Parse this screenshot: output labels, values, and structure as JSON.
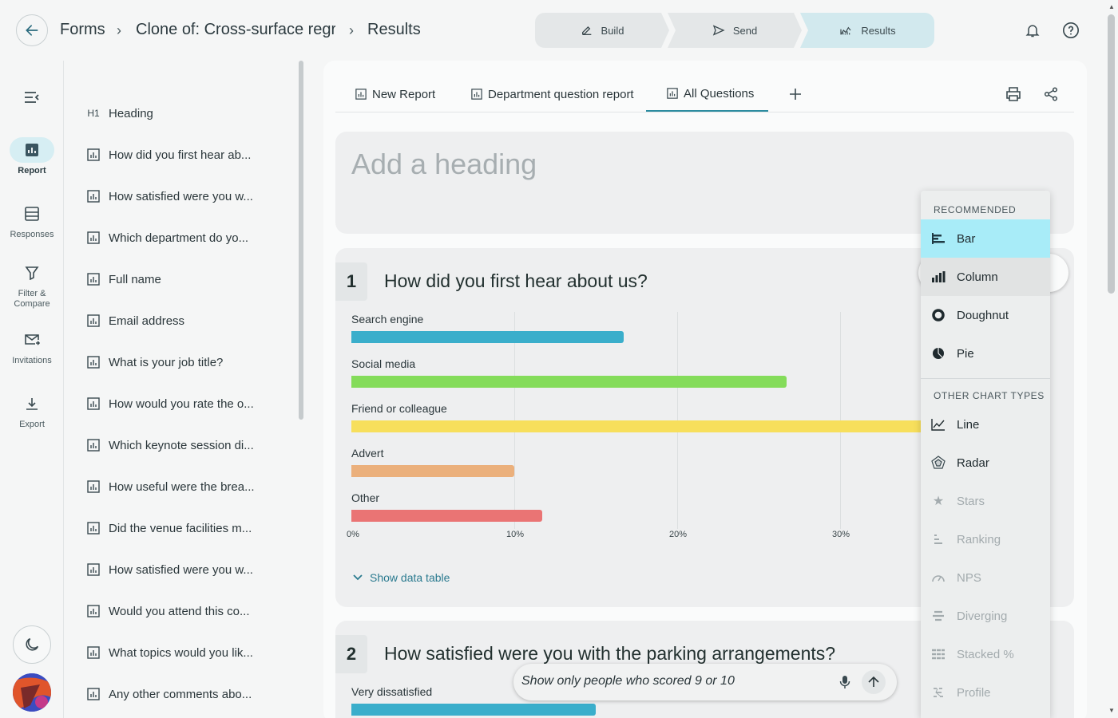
{
  "breadcrumb": {
    "root": "Forms",
    "form": "Clone of: Cross-surface regr...",
    "page": "Results"
  },
  "steps": [
    {
      "label": "Build"
    },
    {
      "label": "Send"
    },
    {
      "label": "Results"
    }
  ],
  "rail": {
    "report": "Report",
    "responses": "Responses",
    "filter": "Filter & Compare",
    "invitations": "Invitations",
    "export": "Export"
  },
  "questions": [
    {
      "prefix": "H1",
      "label": "Heading"
    },
    {
      "label": "How did you first hear ab..."
    },
    {
      "label": "How satisfied were you w..."
    },
    {
      "label": "Which department do yo..."
    },
    {
      "label": "Full name"
    },
    {
      "label": "Email address"
    },
    {
      "label": "What is your job title?"
    },
    {
      "label": "How would you rate the o..."
    },
    {
      "label": "Which keynote session di..."
    },
    {
      "label": "How useful were the brea..."
    },
    {
      "label": "Did the venue facilities m..."
    },
    {
      "label": "How satisfied were you w..."
    },
    {
      "label": "Would you attend this co..."
    },
    {
      "label": "What topics would you lik..."
    },
    {
      "label": "Any other comments abo..."
    }
  ],
  "tabs": [
    {
      "label": "New Report"
    },
    {
      "label": "Department question report"
    },
    {
      "label": "All Questions"
    }
  ],
  "heading_placeholder": "Add a heading",
  "question1": {
    "number": "1",
    "title": "How did you first hear about us?",
    "show_table": "Show data table",
    "bars": [
      {
        "label": "Search engine",
        "value": 16.7,
        "color": "#3aaecb"
      },
      {
        "label": "Social media",
        "value": 26.7,
        "color": "#84dc5a"
      },
      {
        "label": "Friend or colleague",
        "value": 38.0,
        "color": "#f7df5c"
      },
      {
        "label": "Advert",
        "value": 10.0,
        "color": "#ebb07c"
      },
      {
        "label": "Other",
        "value": 11.7,
        "color": "#ea7474"
      }
    ],
    "ticks": [
      "0%",
      "10%",
      "20%",
      "30%"
    ]
  },
  "question2": {
    "number": "2",
    "title": "How satisfied were you with the parking arrangements?",
    "first_bar": {
      "label": "Very dissatisfied",
      "color": "#3aaecb"
    }
  },
  "chart_menu": {
    "recommended_title": "RECOMMENDED",
    "recommended": [
      {
        "label": "Bar",
        "icon": "bar-chart-icon"
      },
      {
        "label": "Column",
        "icon": "column-chart-icon"
      },
      {
        "label": "Doughnut",
        "icon": "doughnut-icon"
      },
      {
        "label": "Pie",
        "icon": "pie-icon"
      }
    ],
    "other_title": "OTHER CHART TYPES",
    "other": [
      {
        "label": "Line",
        "icon": "line-chart-icon"
      },
      {
        "label": "Radar",
        "icon": "radar-icon"
      },
      {
        "label": "Stars",
        "icon": "star-icon"
      },
      {
        "label": "Ranking",
        "icon": "ranking-icon"
      },
      {
        "label": "NPS",
        "icon": "gauge-icon"
      },
      {
        "label": "Diverging",
        "icon": "diverging-icon"
      },
      {
        "label": "Stacked %",
        "icon": "stacked-icon"
      },
      {
        "label": "Profile",
        "icon": "profile-icon"
      }
    ]
  },
  "ask": {
    "text": "Show only people who scored 9 or 10"
  },
  "colors": {
    "accent": "#2c8ca0",
    "selected_menu": "#a8ecf8"
  }
}
